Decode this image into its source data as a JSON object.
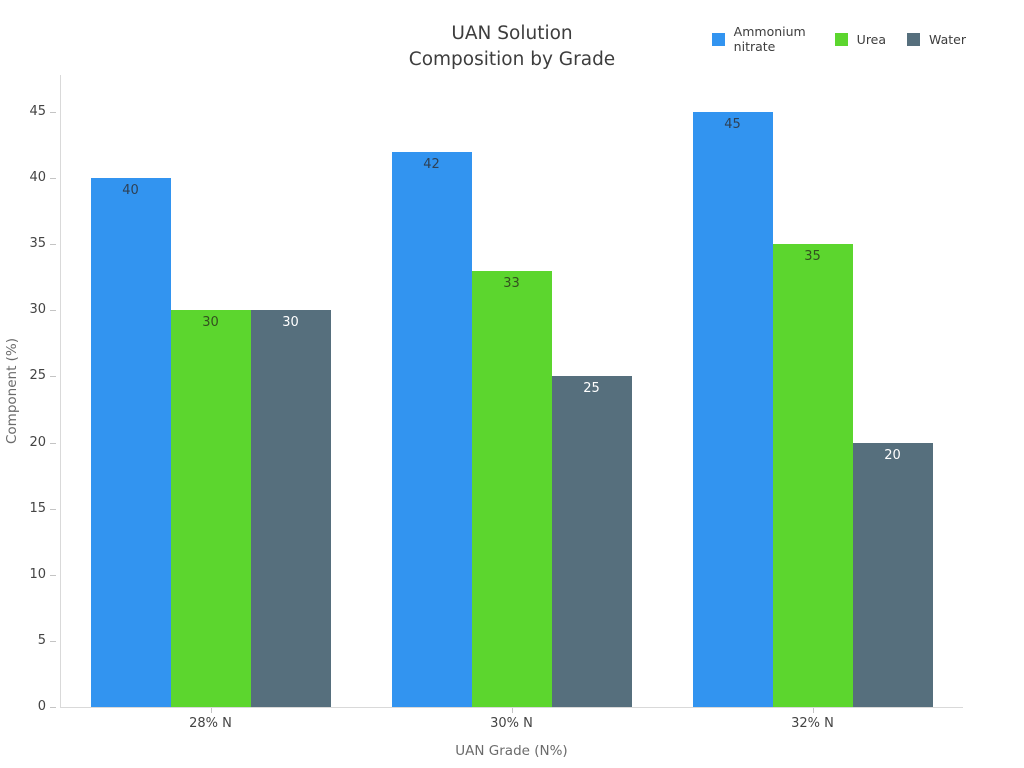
{
  "title": {
    "line1": "UAN Solution",
    "line2": "Composition by Grade"
  },
  "chart_data": {
    "type": "bar",
    "title": "UAN Solution Composition by Grade",
    "categories": [
      "28% N",
      "30% N",
      "32% N"
    ],
    "series": [
      {
        "name": "Ammonium nitrate",
        "values": [
          40,
          42,
          45
        ],
        "color": "#3294f0",
        "label_color": "#2e4156"
      },
      {
        "name": "Urea",
        "values": [
          30,
          33,
          35
        ],
        "color": "#5cd62e",
        "label_color": "#33511f"
      },
      {
        "name": "Water",
        "values": [
          30,
          25,
          20
        ],
        "color": "#566f7d",
        "label_color": "#ffffff"
      }
    ],
    "bar_value_labels": [
      [
        40,
        42,
        45
      ],
      [
        30,
        33,
        35
      ],
      [
        30,
        25,
        20
      ]
    ],
    "xlabel": "UAN Grade (N%)",
    "ylabel": "Component (%)",
    "ylim": [
      0,
      47.8
    ],
    "yticks": [
      0,
      5,
      10,
      15,
      20,
      25,
      30,
      35,
      40,
      45
    ],
    "grid": false,
    "legend_position": "top-right",
    "background_color": "#ffffff",
    "axis_line_color": "#d9d9d9"
  }
}
